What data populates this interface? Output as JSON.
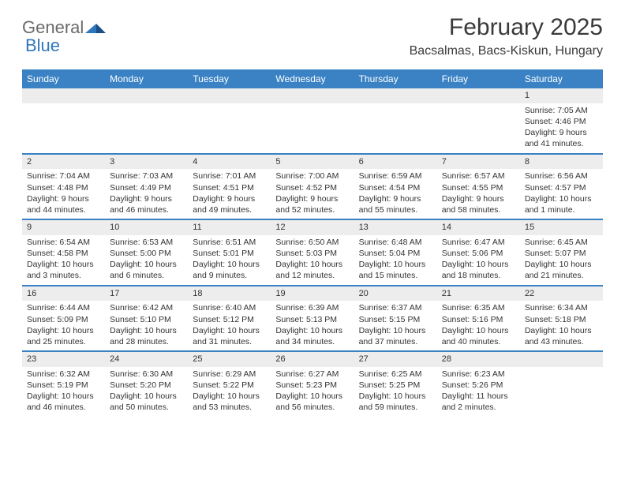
{
  "logo": {
    "general": "General",
    "blue": "Blue"
  },
  "title": "February 2025",
  "location": "Bacsalmas, Bacs-Kiskun, Hungary",
  "colors": {
    "header_bg": "#3a82c4",
    "header_text": "#ffffff",
    "daynum_bg": "#ededed",
    "rule": "#3a82c4",
    "text": "#333333",
    "logo_gray": "#6a6a6a",
    "logo_blue": "#2f77bd",
    "page_bg": "#ffffff"
  },
  "day_names": [
    "Sunday",
    "Monday",
    "Tuesday",
    "Wednesday",
    "Thursday",
    "Friday",
    "Saturday"
  ],
  "weeks": [
    [
      {
        "n": "",
        "lines": []
      },
      {
        "n": "",
        "lines": []
      },
      {
        "n": "",
        "lines": []
      },
      {
        "n": "",
        "lines": []
      },
      {
        "n": "",
        "lines": []
      },
      {
        "n": "",
        "lines": []
      },
      {
        "n": "1",
        "lines": [
          "Sunrise: 7:05 AM",
          "Sunset: 4:46 PM",
          "Daylight: 9 hours and 41 minutes."
        ]
      }
    ],
    [
      {
        "n": "2",
        "lines": [
          "Sunrise: 7:04 AM",
          "Sunset: 4:48 PM",
          "Daylight: 9 hours and 44 minutes."
        ]
      },
      {
        "n": "3",
        "lines": [
          "Sunrise: 7:03 AM",
          "Sunset: 4:49 PM",
          "Daylight: 9 hours and 46 minutes."
        ]
      },
      {
        "n": "4",
        "lines": [
          "Sunrise: 7:01 AM",
          "Sunset: 4:51 PM",
          "Daylight: 9 hours and 49 minutes."
        ]
      },
      {
        "n": "5",
        "lines": [
          "Sunrise: 7:00 AM",
          "Sunset: 4:52 PM",
          "Daylight: 9 hours and 52 minutes."
        ]
      },
      {
        "n": "6",
        "lines": [
          "Sunrise: 6:59 AM",
          "Sunset: 4:54 PM",
          "Daylight: 9 hours and 55 minutes."
        ]
      },
      {
        "n": "7",
        "lines": [
          "Sunrise: 6:57 AM",
          "Sunset: 4:55 PM",
          "Daylight: 9 hours and 58 minutes."
        ]
      },
      {
        "n": "8",
        "lines": [
          "Sunrise: 6:56 AM",
          "Sunset: 4:57 PM",
          "Daylight: 10 hours and 1 minute."
        ]
      }
    ],
    [
      {
        "n": "9",
        "lines": [
          "Sunrise: 6:54 AM",
          "Sunset: 4:58 PM",
          "Daylight: 10 hours and 3 minutes."
        ]
      },
      {
        "n": "10",
        "lines": [
          "Sunrise: 6:53 AM",
          "Sunset: 5:00 PM",
          "Daylight: 10 hours and 6 minutes."
        ]
      },
      {
        "n": "11",
        "lines": [
          "Sunrise: 6:51 AM",
          "Sunset: 5:01 PM",
          "Daylight: 10 hours and 9 minutes."
        ]
      },
      {
        "n": "12",
        "lines": [
          "Sunrise: 6:50 AM",
          "Sunset: 5:03 PM",
          "Daylight: 10 hours and 12 minutes."
        ]
      },
      {
        "n": "13",
        "lines": [
          "Sunrise: 6:48 AM",
          "Sunset: 5:04 PM",
          "Daylight: 10 hours and 15 minutes."
        ]
      },
      {
        "n": "14",
        "lines": [
          "Sunrise: 6:47 AM",
          "Sunset: 5:06 PM",
          "Daylight: 10 hours and 18 minutes."
        ]
      },
      {
        "n": "15",
        "lines": [
          "Sunrise: 6:45 AM",
          "Sunset: 5:07 PM",
          "Daylight: 10 hours and 21 minutes."
        ]
      }
    ],
    [
      {
        "n": "16",
        "lines": [
          "Sunrise: 6:44 AM",
          "Sunset: 5:09 PM",
          "Daylight: 10 hours and 25 minutes."
        ]
      },
      {
        "n": "17",
        "lines": [
          "Sunrise: 6:42 AM",
          "Sunset: 5:10 PM",
          "Daylight: 10 hours and 28 minutes."
        ]
      },
      {
        "n": "18",
        "lines": [
          "Sunrise: 6:40 AM",
          "Sunset: 5:12 PM",
          "Daylight: 10 hours and 31 minutes."
        ]
      },
      {
        "n": "19",
        "lines": [
          "Sunrise: 6:39 AM",
          "Sunset: 5:13 PM",
          "Daylight: 10 hours and 34 minutes."
        ]
      },
      {
        "n": "20",
        "lines": [
          "Sunrise: 6:37 AM",
          "Sunset: 5:15 PM",
          "Daylight: 10 hours and 37 minutes."
        ]
      },
      {
        "n": "21",
        "lines": [
          "Sunrise: 6:35 AM",
          "Sunset: 5:16 PM",
          "Daylight: 10 hours and 40 minutes."
        ]
      },
      {
        "n": "22",
        "lines": [
          "Sunrise: 6:34 AM",
          "Sunset: 5:18 PM",
          "Daylight: 10 hours and 43 minutes."
        ]
      }
    ],
    [
      {
        "n": "23",
        "lines": [
          "Sunrise: 6:32 AM",
          "Sunset: 5:19 PM",
          "Daylight: 10 hours and 46 minutes."
        ]
      },
      {
        "n": "24",
        "lines": [
          "Sunrise: 6:30 AM",
          "Sunset: 5:20 PM",
          "Daylight: 10 hours and 50 minutes."
        ]
      },
      {
        "n": "25",
        "lines": [
          "Sunrise: 6:29 AM",
          "Sunset: 5:22 PM",
          "Daylight: 10 hours and 53 minutes."
        ]
      },
      {
        "n": "26",
        "lines": [
          "Sunrise: 6:27 AM",
          "Sunset: 5:23 PM",
          "Daylight: 10 hours and 56 minutes."
        ]
      },
      {
        "n": "27",
        "lines": [
          "Sunrise: 6:25 AM",
          "Sunset: 5:25 PM",
          "Daylight: 10 hours and 59 minutes."
        ]
      },
      {
        "n": "28",
        "lines": [
          "Sunrise: 6:23 AM",
          "Sunset: 5:26 PM",
          "Daylight: 11 hours and 2 minutes."
        ]
      },
      {
        "n": "",
        "lines": []
      }
    ]
  ]
}
